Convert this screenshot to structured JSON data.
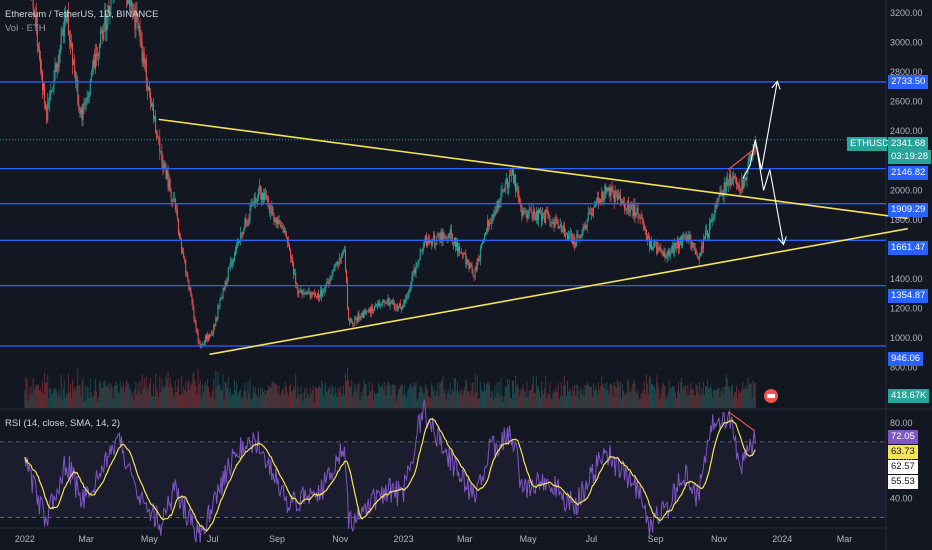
{
  "header": {
    "title": "Ethereum / TetherUS, 1D, BINANCE",
    "vol_label": "Vol · ETH"
  },
  "rsi_panel": {
    "label": "RSI (14, close, SMA, 14, 2)"
  },
  "last_price": {
    "symbol": "ETHUSDT",
    "price": "2341.68",
    "countdown": "03:19:28"
  },
  "volume_badge": "418.67K",
  "colors": {
    "background": "#131722",
    "up": "#26a69a",
    "down": "#ef5350",
    "horizontal_level": "#2962ff",
    "trendline": "#f5e35b",
    "rsi": "#7e57c2",
    "rsi_ma": "#f5e35b",
    "arrow": "#ffffff",
    "price_badge": "#2962ff",
    "last_badge": "#26a69a"
  },
  "chart_data": [
    {
      "type": "candlestick",
      "symbol": "ETHUSDT",
      "interval": "1D",
      "exchange": "BINANCE",
      "x_ticks": [
        "2022",
        "Mar",
        "May",
        "Jul",
        "Sep",
        "Nov",
        "2023",
        "Mar",
        "May",
        "Jul",
        "Sep",
        "Nov",
        "2024",
        "Mar"
      ],
      "y_ticks": [
        800,
        1000,
        1200,
        1400,
        1600,
        1800,
        2000,
        2200,
        2400,
        2600,
        2800,
        3000,
        3200
      ],
      "ylim": [
        740,
        3260
      ],
      "horizontal_levels": [
        "2733.50",
        "2146.82",
        "1909.29",
        "1661.47",
        "1354.87",
        "946.06"
      ],
      "price_anchors": [
        {
          "date": "2022-01-01",
          "price": 3700
        },
        {
          "date": "2022-01-22",
          "price": 2500
        },
        {
          "date": "2022-02-10",
          "price": 3200
        },
        {
          "date": "2022-02-24",
          "price": 2500
        },
        {
          "date": "2022-04-02",
          "price": 3500
        },
        {
          "date": "2022-04-20",
          "price": 3100
        },
        {
          "date": "2022-05-10",
          "price": 2300
        },
        {
          "date": "2022-05-25",
          "price": 1900
        },
        {
          "date": "2022-06-18",
          "price": 950
        },
        {
          "date": "2022-07-01",
          "price": 1050
        },
        {
          "date": "2022-07-20",
          "price": 1550
        },
        {
          "date": "2022-08-14",
          "price": 2000
        },
        {
          "date": "2022-09-10",
          "price": 1700
        },
        {
          "date": "2022-09-22",
          "price": 1300
        },
        {
          "date": "2022-10-15",
          "price": 1300
        },
        {
          "date": "2022-11-05",
          "price": 1600
        },
        {
          "date": "2022-11-09",
          "price": 1100
        },
        {
          "date": "2022-12-15",
          "price": 1250
        },
        {
          "date": "2022-12-31",
          "price": 1200
        },
        {
          "date": "2023-01-20",
          "price": 1650
        },
        {
          "date": "2023-02-15",
          "price": 1700
        },
        {
          "date": "2023-03-10",
          "price": 1430
        },
        {
          "date": "2023-03-25",
          "price": 1800
        },
        {
          "date": "2023-04-16",
          "price": 2120
        },
        {
          "date": "2023-04-25",
          "price": 1850
        },
        {
          "date": "2023-05-20",
          "price": 1820
        },
        {
          "date": "2023-06-15",
          "price": 1650
        },
        {
          "date": "2023-07-14",
          "price": 2000
        },
        {
          "date": "2023-08-15",
          "price": 1850
        },
        {
          "date": "2023-08-25",
          "price": 1650
        },
        {
          "date": "2023-09-12",
          "price": 1560
        },
        {
          "date": "2023-10-01",
          "price": 1700
        },
        {
          "date": "2023-10-12",
          "price": 1550
        },
        {
          "date": "2023-10-25",
          "price": 1800
        },
        {
          "date": "2023-11-10",
          "price": 2100
        },
        {
          "date": "2023-11-22",
          "price": 2000
        },
        {
          "date": "2023-12-06",
          "price": 2341.68
        }
      ],
      "volume_ylim": [
        0,
        1
      ],
      "trendlines": [
        {
          "name": "descending",
          "from": {
            "date": "2022-05-10",
            "price": 2480
          },
          "to": {
            "date": "2024-05-01",
            "price": 1810
          }
        },
        {
          "name": "ascending",
          "from": {
            "date": "2022-06-28",
            "price": 890
          },
          "to": {
            "date": "2024-05-01",
            "price": 1740
          }
        }
      ],
      "projections": [
        {
          "name": "bullish-path",
          "points": [
            {
              "date": "2023-11-24",
              "price": 2080
            },
            {
              "date": "2023-12-01",
              "price": 2170
            },
            {
              "date": "2023-12-06",
              "price": 2341.68
            },
            {
              "date": "2023-12-12",
              "price": 2140
            },
            {
              "date": "2023-12-27",
              "price": 2730
            }
          ]
        },
        {
          "name": "bearish-path",
          "points": [
            {
              "date": "2023-12-06",
              "price": 2341.68
            },
            {
              "date": "2023-12-14",
              "price": 2000
            },
            {
              "date": "2023-12-20",
              "price": 2140
            },
            {
              "date": "2024-01-02",
              "price": 1640
            }
          ]
        }
      ],
      "divergence_line": {
        "from": {
          "date": "2023-11-10",
          "price": 2140
        },
        "to": {
          "date": "2023-12-05",
          "price": 2280
        }
      }
    },
    {
      "type": "line",
      "name": "RSI (14, close, SMA, 14, 2)",
      "y_ticks": [
        40,
        60,
        80
      ],
      "ylim": [
        26,
        90
      ],
      "reference_levels": [
        70,
        30
      ],
      "current_values": [
        "72.05",
        "63.73",
        "62.57",
        "55.53"
      ],
      "rsi_anchors": [
        {
          "date": "2022-01-01",
          "value": 60
        },
        {
          "date": "2022-01-22",
          "value": 28
        },
        {
          "date": "2022-02-10",
          "value": 60
        },
        {
          "date": "2022-02-25",
          "value": 38
        },
        {
          "date": "2022-04-02",
          "value": 70
        },
        {
          "date": "2022-04-20",
          "value": 45
        },
        {
          "date": "2022-05-12",
          "value": 26
        },
        {
          "date": "2022-05-25",
          "value": 45
        },
        {
          "date": "2022-06-18",
          "value": 20
        },
        {
          "date": "2022-07-01",
          "value": 38
        },
        {
          "date": "2022-07-25",
          "value": 65
        },
        {
          "date": "2022-08-14",
          "value": 70
        },
        {
          "date": "2022-09-10",
          "value": 38
        },
        {
          "date": "2022-09-22",
          "value": 40
        },
        {
          "date": "2022-10-15",
          "value": 45
        },
        {
          "date": "2022-11-05",
          "value": 70
        },
        {
          "date": "2022-11-09",
          "value": 25
        },
        {
          "date": "2022-12-15",
          "value": 45
        },
        {
          "date": "2022-12-31",
          "value": 42
        },
        {
          "date": "2023-01-20",
          "value": 88
        },
        {
          "date": "2023-02-15",
          "value": 60
        },
        {
          "date": "2023-03-10",
          "value": 40
        },
        {
          "date": "2023-03-25",
          "value": 65
        },
        {
          "date": "2023-04-16",
          "value": 75
        },
        {
          "date": "2023-04-25",
          "value": 45
        },
        {
          "date": "2023-05-20",
          "value": 50
        },
        {
          "date": "2023-06-15",
          "value": 35
        },
        {
          "date": "2023-07-14",
          "value": 65
        },
        {
          "date": "2023-08-15",
          "value": 45
        },
        {
          "date": "2023-08-25",
          "value": 25
        },
        {
          "date": "2023-09-12",
          "value": 35
        },
        {
          "date": "2023-10-01",
          "value": 55
        },
        {
          "date": "2023-10-12",
          "value": 40
        },
        {
          "date": "2023-10-25",
          "value": 80
        },
        {
          "date": "2023-11-10",
          "value": 85
        },
        {
          "date": "2023-11-22",
          "value": 58
        },
        {
          "date": "2023-12-06",
          "value": 72
        }
      ],
      "divergence_line": {
        "from": {
          "date": "2023-11-10",
          "value": 86
        },
        "to": {
          "date": "2023-12-05",
          "value": 76
        }
      }
    }
  ]
}
